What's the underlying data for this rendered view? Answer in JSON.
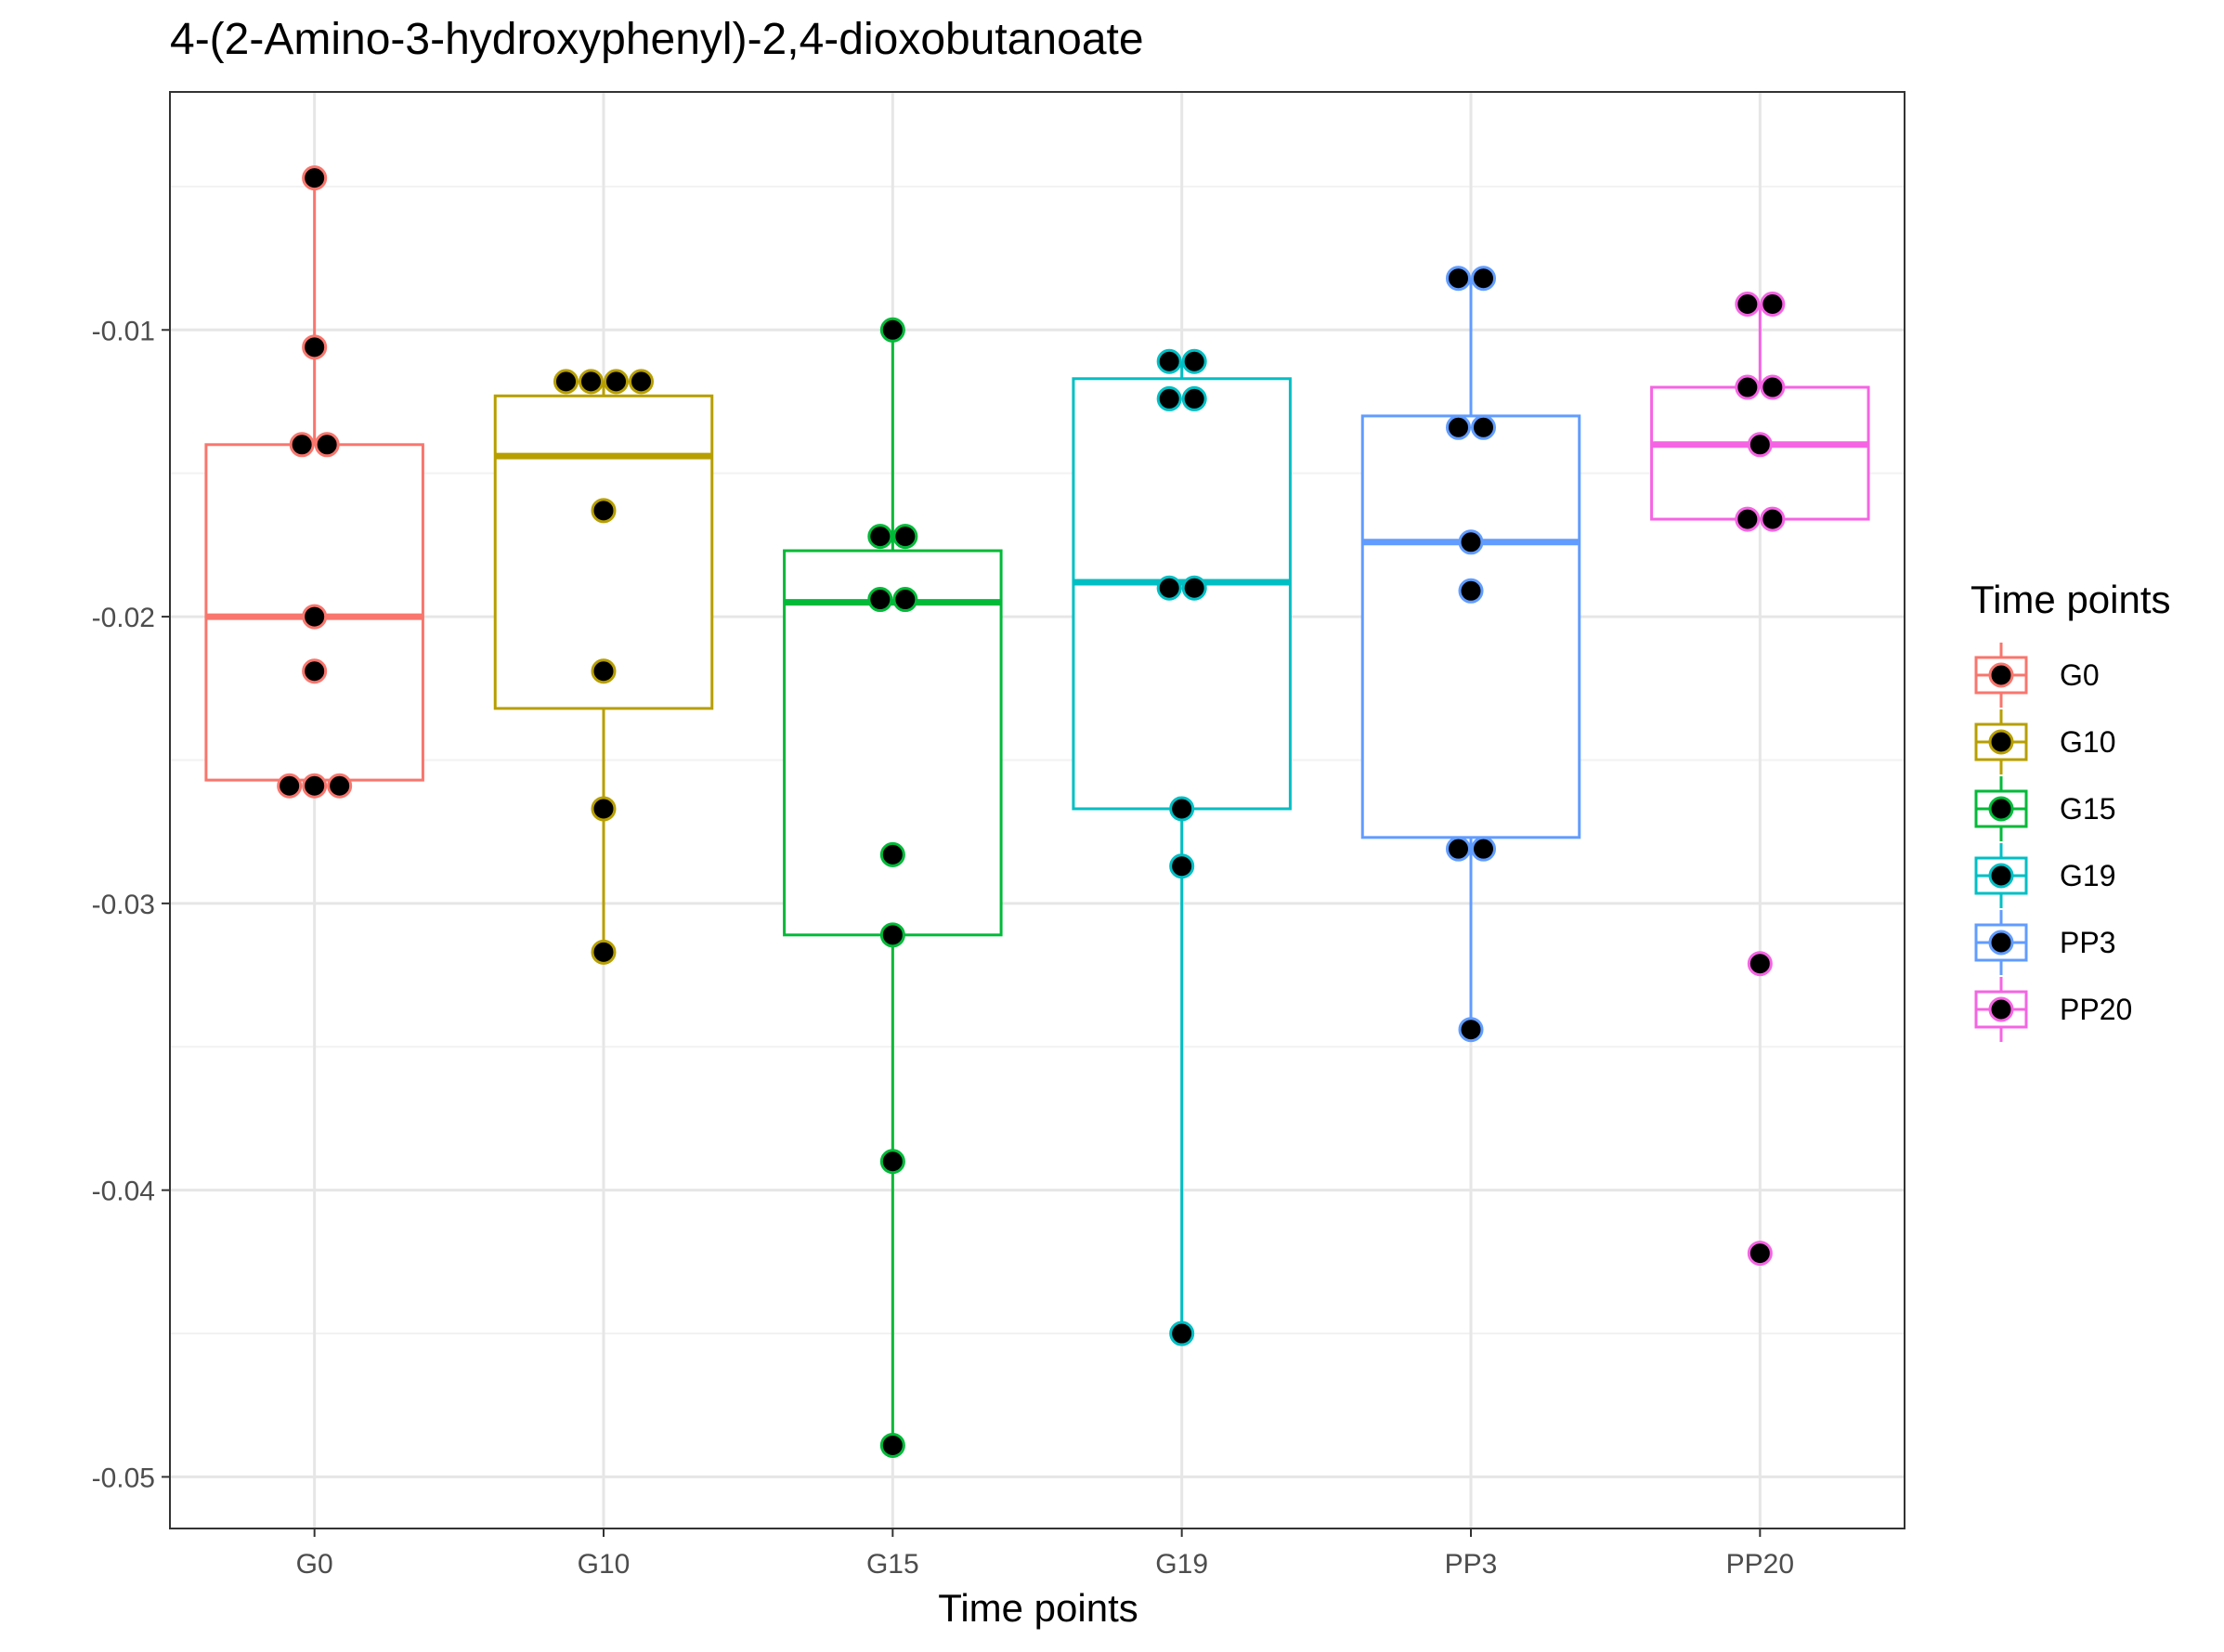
{
  "chart_data": {
    "type": "boxplot",
    "title": "4-(2-Amino-3-hydroxyphenyl)-2,4-dioxobutanoate",
    "xlabel": "Time points",
    "ylabel": "",
    "ylim": [
      -0.0518,
      -0.0017
    ],
    "y_ticks": [
      -0.05,
      -0.04,
      -0.03,
      -0.02,
      -0.01
    ],
    "y_tick_labels": [
      "-0.05",
      "-0.04",
      "-0.03",
      "-0.02",
      "-0.01"
    ],
    "grid": true,
    "legend": {
      "title": "Time points",
      "position": "right"
    },
    "categories": [
      "G0",
      "G10",
      "G15",
      "G19",
      "PP3",
      "PP20"
    ],
    "series": [
      {
        "name": "G0",
        "color": "#F8766D",
        "box": {
          "min": -0.0259,
          "q1": -0.0257,
          "median": -0.02,
          "q3": -0.014,
          "max": -0.0047
        },
        "points": [
          -0.0047,
          -0.0106,
          -0.014,
          -0.014,
          -0.02,
          -0.0219,
          -0.0259,
          -0.0259,
          -0.0259
        ]
      },
      {
        "name": "G10",
        "color": "#B79F00",
        "box": {
          "min": -0.0317,
          "q1": -0.0232,
          "median": -0.0144,
          "q3": -0.0123,
          "max": -0.0118
        },
        "points": [
          -0.0118,
          -0.0118,
          -0.0118,
          -0.0118,
          -0.0163,
          -0.0219,
          -0.0267,
          -0.0317
        ]
      },
      {
        "name": "G15",
        "color": "#00BA38",
        "box": {
          "min": -0.0489,
          "q1": -0.0311,
          "median": -0.0195,
          "q3": -0.0177,
          "max": -0.01
        },
        "points": [
          -0.01,
          -0.0172,
          -0.0172,
          -0.0194,
          -0.0194,
          -0.0283,
          -0.0311,
          -0.039,
          -0.0489
        ]
      },
      {
        "name": "G19",
        "color": "#00BFC4",
        "box": {
          "min": -0.045,
          "q1": -0.0267,
          "median": -0.0188,
          "q3": -0.0117,
          "max": -0.0111
        },
        "points": [
          -0.0111,
          -0.0111,
          -0.0124,
          -0.0124,
          -0.019,
          -0.019,
          -0.0267,
          -0.0287,
          -0.045
        ]
      },
      {
        "name": "PP3",
        "color": "#619CFF",
        "box": {
          "min": -0.0344,
          "q1": -0.0277,
          "median": -0.0174,
          "q3": -0.013,
          "max": -0.0082
        },
        "points": [
          -0.0082,
          -0.0082,
          -0.0134,
          -0.0134,
          -0.0174,
          -0.0191,
          -0.0281,
          -0.0281,
          -0.0344
        ]
      },
      {
        "name": "PP20",
        "color": "#F564E3",
        "box": {
          "min": -0.0166,
          "q1": -0.0166,
          "median": -0.014,
          "q3": -0.012,
          "max": -0.0091
        },
        "points": [
          -0.0091,
          -0.0091,
          -0.012,
          -0.012,
          -0.014,
          -0.0166,
          -0.0166,
          -0.0321,
          -0.0422
        ]
      }
    ]
  }
}
